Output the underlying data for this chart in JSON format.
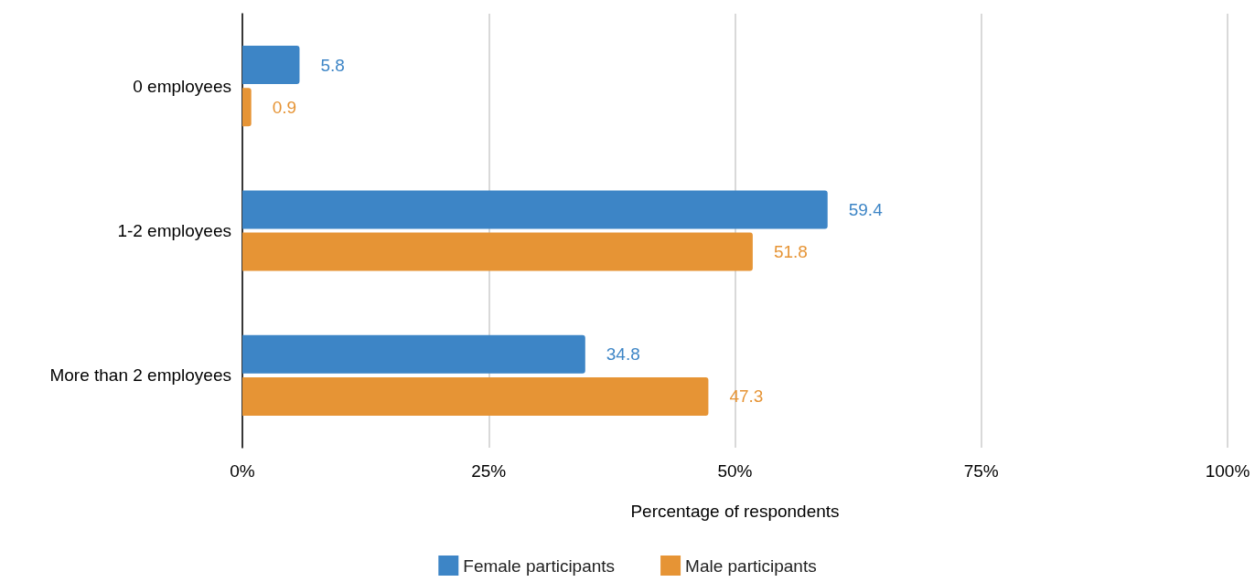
{
  "chart_data": {
    "type": "bar",
    "orientation": "horizontal",
    "categories": [
      "0 employees",
      "1-2 employees",
      "More than 2 employees"
    ],
    "series": [
      {
        "name": "Female participants",
        "color": "#3d85c6",
        "values": [
          5.8,
          59.4,
          34.8
        ]
      },
      {
        "name": "Male participants",
        "color": "#e69435",
        "values": [
          0.9,
          51.8,
          47.3
        ]
      }
    ],
    "xlabel": "Percentage of respondents",
    "xlim": [
      0,
      100
    ],
    "xticks": [
      {
        "value": 0,
        "label": "0%"
      },
      {
        "value": 25,
        "label": "25%"
      },
      {
        "value": 50,
        "label": "50%"
      },
      {
        "value": 75,
        "label": "75%"
      },
      {
        "value": 100,
        "label": "100%"
      }
    ],
    "grid": "x",
    "legend": "bottom",
    "data_labels": true
  }
}
